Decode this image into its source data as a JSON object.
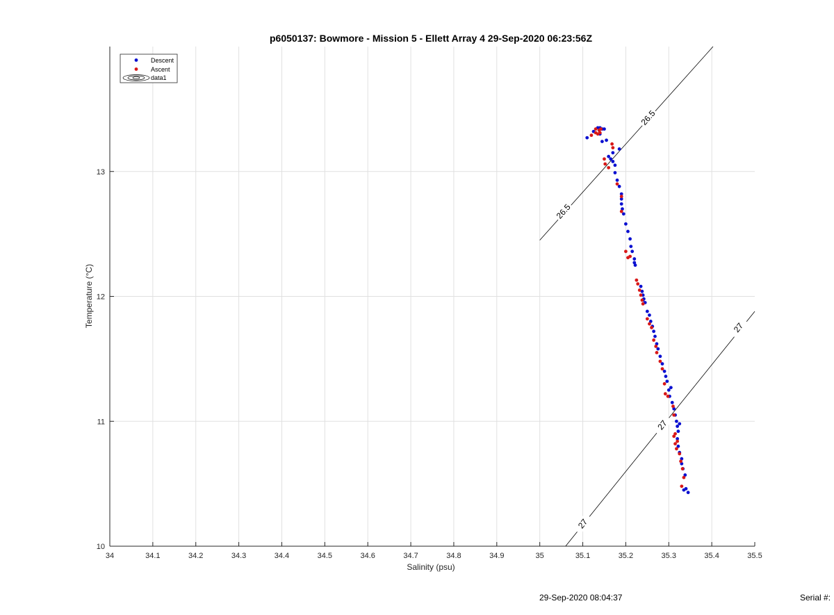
{
  "footer": {
    "timestamp": "29-Sep-2020 08:04:37",
    "serial": "Serial #:"
  },
  "colors": {
    "descent": "#0a10d0",
    "ascent": "#d81818",
    "grid": "#e0e0e0",
    "axis": "#262626",
    "contour": "#000000"
  },
  "chart_data": {
    "type": "scatter",
    "title": "p6050137: Bowmore - Mission 5 - Ellett Array 4 29-Sep-2020 06:23:56Z",
    "xlabel": "Salinity (psu)",
    "ylabel": "Temperature (°C)",
    "xlim": [
      34,
      35.5
    ],
    "ylim": [
      10,
      14
    ],
    "xticks": [
      "34",
      "34.1",
      "34.2",
      "34.3",
      "34.4",
      "34.5",
      "34.6",
      "34.7",
      "34.8",
      "34.9",
      "35",
      "35.1",
      "35.2",
      "35.3",
      "35.4",
      "35.5"
    ],
    "xtick_values": [
      34,
      34.1,
      34.2,
      34.3,
      34.4,
      34.5,
      34.6,
      34.7,
      34.8,
      34.9,
      35,
      35.1,
      35.2,
      35.3,
      35.4,
      35.5
    ],
    "yticks": [
      "10",
      "11",
      "12",
      "13"
    ],
    "ytick_values": [
      10,
      11,
      12,
      13
    ],
    "grid": true,
    "legend_position": "top-left",
    "legend": [
      {
        "label": "Descent",
        "marker": "dot",
        "color": "#0a10d0"
      },
      {
        "label": "Ascent",
        "marker": "dot",
        "color": "#d81818"
      },
      {
        "label": "data1",
        "marker": "contour"
      }
    ],
    "contours": [
      {
        "label": "26.5",
        "points": [
          [
            35.0,
            12.45
          ],
          [
            35.403,
            14.0
          ]
        ],
        "labels_at": [
          [
            35.055,
            12.68
          ],
          [
            35.252,
            13.43
          ]
        ]
      },
      {
        "label": "27",
        "points": [
          [
            35.06,
            10.0
          ],
          [
            35.5,
            11.88
          ]
        ],
        "labels_at": [
          [
            35.1,
            10.18
          ],
          [
            35.285,
            10.97
          ],
          [
            35.462,
            11.75
          ]
        ]
      }
    ],
    "series": [
      {
        "name": "Descent",
        "color": "#0a10d0",
        "points": [
          [
            35.11,
            13.27
          ],
          [
            35.125,
            13.32
          ],
          [
            35.135,
            13.35
          ],
          [
            35.14,
            13.35
          ],
          [
            35.145,
            13.34
          ],
          [
            35.14,
            13.3
          ],
          [
            35.15,
            13.34
          ],
          [
            35.145,
            13.24
          ],
          [
            35.155,
            13.25
          ],
          [
            35.16,
            13.12
          ],
          [
            35.165,
            13.1
          ],
          [
            35.17,
            13.08
          ],
          [
            35.17,
            13.15
          ],
          [
            35.175,
            13.05
          ],
          [
            35.185,
            13.18
          ],
          [
            35.175,
            12.99
          ],
          [
            35.18,
            12.93
          ],
          [
            35.185,
            12.88
          ],
          [
            35.19,
            12.82
          ],
          [
            35.19,
            12.78
          ],
          [
            35.19,
            12.74
          ],
          [
            35.192,
            12.7
          ],
          [
            35.195,
            12.66
          ],
          [
            35.2,
            12.58
          ],
          [
            35.205,
            12.52
          ],
          [
            35.21,
            12.46
          ],
          [
            35.212,
            12.4
          ],
          [
            35.215,
            12.36
          ],
          [
            35.22,
            12.3
          ],
          [
            35.22,
            12.27
          ],
          [
            35.222,
            12.25
          ],
          [
            35.235,
            12.08
          ],
          [
            35.238,
            12.04
          ],
          [
            35.24,
            12.01
          ],
          [
            35.242,
            11.98
          ],
          [
            35.245,
            11.95
          ],
          [
            35.24,
            11.97
          ],
          [
            35.25,
            11.88
          ],
          [
            35.255,
            11.85
          ],
          [
            35.258,
            11.8
          ],
          [
            35.262,
            11.76
          ],
          [
            35.265,
            11.72
          ],
          [
            35.268,
            11.68
          ],
          [
            35.272,
            11.62
          ],
          [
            35.275,
            11.58
          ],
          [
            35.28,
            11.52
          ],
          [
            35.285,
            11.46
          ],
          [
            35.29,
            11.4
          ],
          [
            35.293,
            11.36
          ],
          [
            35.296,
            11.32
          ],
          [
            35.3,
            11.25
          ],
          [
            35.302,
            11.2
          ],
          [
            35.305,
            11.27
          ],
          [
            35.308,
            11.15
          ],
          [
            35.312,
            11.1
          ],
          [
            35.315,
            11.05
          ],
          [
            35.318,
            11.0
          ],
          [
            35.32,
            10.96
          ],
          [
            35.322,
            10.92
          ],
          [
            35.325,
            10.98
          ],
          [
            35.32,
            10.86
          ],
          [
            35.322,
            10.8
          ],
          [
            35.325,
            10.75
          ],
          [
            35.33,
            10.7
          ],
          [
            35.33,
            10.66
          ],
          [
            35.333,
            10.62
          ],
          [
            35.338,
            10.57
          ],
          [
            35.335,
            10.45
          ],
          [
            35.34,
            10.46
          ],
          [
            35.345,
            10.43
          ]
        ]
      },
      {
        "name": "Ascent",
        "color": "#d81818",
        "points": [
          [
            35.12,
            13.29
          ],
          [
            35.13,
            13.31
          ],
          [
            35.13,
            13.34
          ],
          [
            35.135,
            13.3
          ],
          [
            35.138,
            13.33
          ],
          [
            35.14,
            13.31
          ],
          [
            35.142,
            13.34
          ],
          [
            35.15,
            13.1
          ],
          [
            35.152,
            13.06
          ],
          [
            35.16,
            13.03
          ],
          [
            35.168,
            13.22
          ],
          [
            35.17,
            13.19
          ],
          [
            35.18,
            12.9
          ],
          [
            35.19,
            12.8
          ],
          [
            35.19,
            12.68
          ],
          [
            35.2,
            12.36
          ],
          [
            35.205,
            12.31
          ],
          [
            35.21,
            12.32
          ],
          [
            35.225,
            12.13
          ],
          [
            35.228,
            12.1
          ],
          [
            35.232,
            12.05
          ],
          [
            35.235,
            12.01
          ],
          [
            35.238,
            11.97
          ],
          [
            35.24,
            11.94
          ],
          [
            35.25,
            11.82
          ],
          [
            35.255,
            11.78
          ],
          [
            35.26,
            11.75
          ],
          [
            35.265,
            11.65
          ],
          [
            35.27,
            11.6
          ],
          [
            35.272,
            11.55
          ],
          [
            35.28,
            11.48
          ],
          [
            35.285,
            11.42
          ],
          [
            35.29,
            11.3
          ],
          [
            35.292,
            11.22
          ],
          [
            35.298,
            11.2
          ],
          [
            35.31,
            11.12
          ],
          [
            35.312,
            11.05
          ],
          [
            35.312,
            10.88
          ],
          [
            35.315,
            10.82
          ],
          [
            35.318,
            10.78
          ],
          [
            35.32,
            10.84
          ],
          [
            35.315,
            10.9
          ],
          [
            35.325,
            10.74
          ],
          [
            35.328,
            10.68
          ],
          [
            35.332,
            10.62
          ],
          [
            35.335,
            10.55
          ],
          [
            35.33,
            10.48
          ]
        ]
      }
    ]
  }
}
